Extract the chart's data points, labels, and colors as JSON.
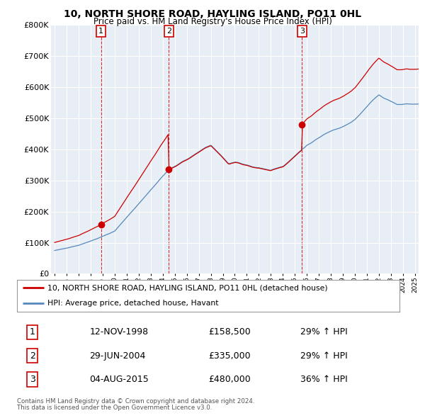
{
  "title": "10, NORTH SHORE ROAD, HAYLING ISLAND, PO11 0HL",
  "subtitle": "Price paid vs. HM Land Registry's House Price Index (HPI)",
  "table_rows": [
    {
      "num": "1",
      "date": "12-NOV-1998",
      "price": "£158,500",
      "hpi": "29% ↑ HPI"
    },
    {
      "num": "2",
      "date": "29-JUN-2004",
      "price": "£335,000",
      "hpi": "29% ↑ HPI"
    },
    {
      "num": "3",
      "date": "04-AUG-2015",
      "price": "£480,000",
      "hpi": "36% ↑ HPI"
    }
  ],
  "legend_property": "10, NORTH SHORE ROAD, HAYLING ISLAND, PO11 0HL (detached house)",
  "legend_hpi": "HPI: Average price, detached house, Havant",
  "footer1": "Contains HM Land Registry data © Crown copyright and database right 2024.",
  "footer2": "This data is licensed under the Open Government Licence v3.0.",
  "property_color": "#cc0000",
  "hpi_color": "#5588bb",
  "sale_times": [
    1998.875,
    2004.5,
    2015.583
  ],
  "sale_prices": [
    158500,
    335000,
    480000
  ],
  "sale_labels": [
    "1",
    "2",
    "3"
  ],
  "ylim": [
    0,
    800000
  ],
  "xlim_start": 1994.7,
  "xlim_end": 2025.3,
  "background_color": "#ffffff",
  "plot_bg_color": "#e8eef5",
  "grid_color": "#ffffff",
  "title_fontsize": 10,
  "subtitle_fontsize": 9
}
